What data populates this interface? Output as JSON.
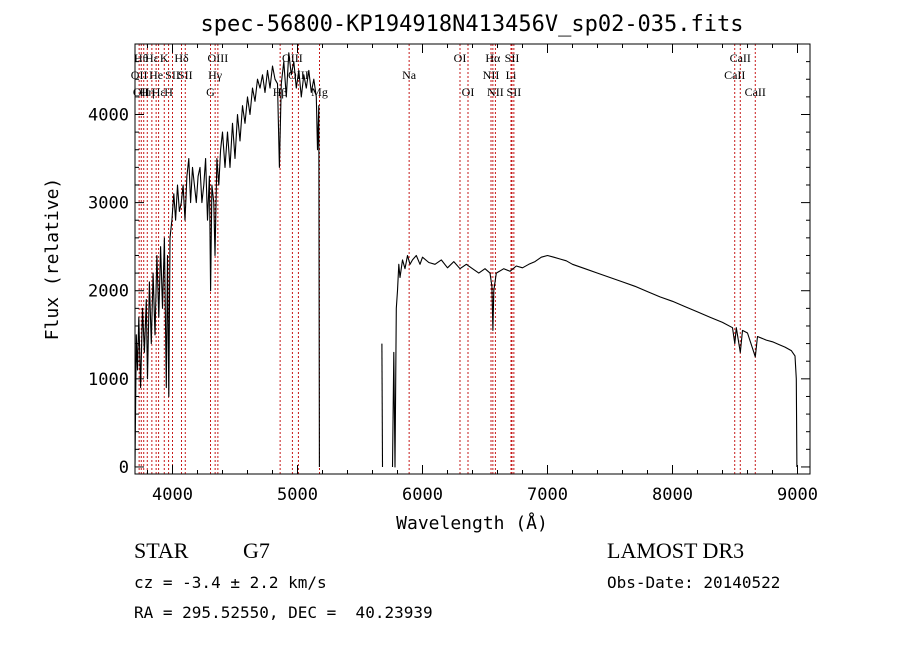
{
  "chart_data": {
    "type": "line",
    "title": "spec-56800-KP194918N413456V_sp02-035.fits",
    "xlabel": "Wavelength (Å)",
    "ylabel": "Flux (relative)",
    "xlim": [
      3700,
      9100
    ],
    "ylim": [
      -80,
      4800
    ],
    "x_ticks": [
      4000,
      5000,
      6000,
      7000,
      8000,
      9000
    ],
    "y_ticks": [
      0,
      1000,
      2000,
      3000,
      4000
    ],
    "grid": false,
    "series": [
      {
        "segments": [
          [
            [
              3700,
              0
            ],
            [
              3710,
              1500
            ],
            [
              3720,
              1100
            ],
            [
              3730,
              1700
            ],
            [
              3745,
              900
            ],
            [
              3760,
              1800
            ],
            [
              3775,
              1300
            ],
            [
              3790,
              1900
            ],
            [
              3800,
              1000
            ],
            [
              3815,
              2100
            ],
            [
              3830,
              1400
            ],
            [
              3845,
              2200
            ],
            [
              3860,
              1500
            ],
            [
              3875,
              2400
            ],
            [
              3890,
              1700
            ],
            [
              3905,
              2500
            ],
            [
              3920,
              1800
            ],
            [
              3935,
              2600
            ],
            [
              3950,
              900
            ],
            [
              3960,
              2400
            ],
            [
              3970,
              800
            ],
            [
              3980,
              2600
            ],
            [
              3995,
              2800
            ],
            [
              4010,
              3100
            ],
            [
              4025,
              2800
            ],
            [
              4040,
              3200
            ],
            [
              4055,
              2900
            ],
            [
              4070,
              3000
            ],
            [
              4085,
              3200
            ],
            [
              4100,
              2800
            ],
            [
              4115,
              3300
            ],
            [
              4130,
              3500
            ],
            [
              4145,
              3000
            ],
            [
              4160,
              3400
            ],
            [
              4175,
              3200
            ],
            [
              4190,
              3000
            ],
            [
              4205,
              3300
            ],
            [
              4220,
              3400
            ],
            [
              4235,
              3000
            ],
            [
              4250,
              3200
            ],
            [
              4265,
              3500
            ],
            [
              4280,
              2800
            ],
            [
              4295,
              3300
            ],
            [
              4305,
              2000
            ],
            [
              4315,
              3200
            ],
            [
              4330,
              3000
            ],
            [
              4340,
              2400
            ],
            [
              4355,
              3500
            ],
            [
              4370,
              3200
            ],
            [
              4385,
              3600
            ],
            [
              4400,
              3800
            ],
            [
              4420,
              3400
            ],
            [
              4440,
              3800
            ],
            [
              4460,
              3400
            ],
            [
              4480,
              3900
            ],
            [
              4500,
              3500
            ],
            [
              4520,
              4000
            ],
            [
              4540,
              3700
            ],
            [
              4560,
              4100
            ],
            [
              4580,
              3900
            ],
            [
              4600,
              4200
            ],
            [
              4620,
              4000
            ],
            [
              4640,
              4300
            ],
            [
              4660,
              4150
            ],
            [
              4680,
              4400
            ],
            [
              4700,
              4300
            ],
            [
              4720,
              4450
            ],
            [
              4740,
              4250
            ],
            [
              4760,
              4500
            ],
            [
              4780,
              4300
            ],
            [
              4800,
              4550
            ],
            [
              4820,
              4400
            ],
            [
              4840,
              4350
            ],
            [
              4855,
              3400
            ],
            [
              4870,
              4350
            ],
            [
              4890,
              4600
            ],
            [
              4910,
              4200
            ],
            [
              4930,
              4700
            ],
            [
              4950,
              4450
            ],
            [
              4970,
              4600
            ],
            [
              4990,
              4300
            ],
            [
              5010,
              4500
            ],
            [
              5030,
              4200
            ],
            [
              5050,
              4450
            ],
            [
              5070,
              4300
            ],
            [
              5090,
              4500
            ],
            [
              5110,
              4250
            ],
            [
              5130,
              4400
            ],
            [
              5150,
              4200
            ],
            [
              5160,
              3600
            ],
            [
              5170,
              4100
            ],
            [
              5175,
              0
            ]
          ],
          [
            [
              5675,
              1400
            ],
            [
              5680,
              0
            ]
          ],
          [
            [
              5760,
              0
            ],
            [
              5770,
              1300
            ],
            [
              5780,
              0
            ],
            [
              5790,
              1800
            ],
            [
              5800,
              2000
            ],
            [
              5810,
              2300
            ],
            [
              5820,
              2150
            ],
            [
              5840,
              2350
            ],
            [
              5860,
              2250
            ],
            [
              5880,
              2400
            ],
            [
              5900,
              2300
            ],
            [
              5920,
              2350
            ],
            [
              5950,
              2400
            ],
            [
              5980,
              2300
            ],
            [
              6000,
              2380
            ],
            [
              6050,
              2320
            ],
            [
              6100,
              2300
            ],
            [
              6150,
              2350
            ],
            [
              6200,
              2260
            ],
            [
              6250,
              2330
            ],
            [
              6300,
              2250
            ],
            [
              6350,
              2300
            ],
            [
              6400,
              2250
            ],
            [
              6450,
              2200
            ],
            [
              6500,
              2250
            ],
            [
              6540,
              2200
            ],
            [
              6555,
              2050
            ],
            [
              6563,
              1550
            ],
            [
              6570,
              2000
            ],
            [
              6590,
              2200
            ],
            [
              6650,
              2250
            ],
            [
              6700,
              2220
            ],
            [
              6750,
              2280
            ],
            [
              6800,
              2260
            ],
            [
              6850,
              2300
            ],
            [
              6900,
              2330
            ],
            [
              6950,
              2380
            ],
            [
              7000,
              2400
            ],
            [
              7050,
              2380
            ],
            [
              7100,
              2360
            ],
            [
              7150,
              2340
            ],
            [
              7200,
              2300
            ],
            [
              7300,
              2250
            ],
            [
              7400,
              2200
            ],
            [
              7500,
              2150
            ],
            [
              7600,
              2100
            ],
            [
              7700,
              2050
            ],
            [
              7800,
              1990
            ],
            [
              7900,
              1930
            ],
            [
              8000,
              1880
            ],
            [
              8100,
              1820
            ],
            [
              8200,
              1760
            ],
            [
              8300,
              1700
            ],
            [
              8400,
              1640
            ],
            [
              8480,
              1580
            ],
            [
              8498,
              1400
            ],
            [
              8510,
              1580
            ],
            [
              8542,
              1300
            ],
            [
              8560,
              1550
            ],
            [
              8600,
              1520
            ],
            [
              8662,
              1250
            ],
            [
              8680,
              1480
            ],
            [
              8750,
              1440
            ],
            [
              8800,
              1420
            ],
            [
              8850,
              1390
            ],
            [
              8900,
              1360
            ],
            [
              8950,
              1320
            ],
            [
              8980,
              1260
            ],
            [
              8990,
              1000
            ],
            [
              8995,
              0
            ]
          ]
        ]
      }
    ],
    "lines": [
      {
        "wl": 3733,
        "labels": [
          {
            "text": "OII",
            "row": 1
          }
        ]
      },
      {
        "wl": 3750,
        "labels": [
          {
            "text": "Hθ",
            "row": 0
          },
          {
            "text": "OII",
            "row": 2
          }
        ]
      },
      {
        "wl": 3770,
        "labels": []
      },
      {
        "wl": 3798,
        "labels": [
          {
            "text": "Hη",
            "row": 2
          }
        ]
      },
      {
        "wl": 3835,
        "labels": [
          {
            "text": "Hε",
            "row": 0
          }
        ]
      },
      {
        "wl": 3869,
        "labels": [
          {
            "text": "He",
            "row": 1
          }
        ]
      },
      {
        "wl": 3889,
        "labels": [
          {
            "text": "Hε",
            "row": 2
          }
        ]
      },
      {
        "wl": 3934,
        "labels": [
          {
            "text": "K",
            "row": 0
          }
        ]
      },
      {
        "wl": 3969,
        "labels": [
          {
            "text": "H",
            "row": 2
          }
        ]
      },
      {
        "wl": 4000,
        "labels": [
          {
            "text": "SII",
            "row": 1
          }
        ]
      },
      {
        "wl": 4072,
        "labels": [
          {
            "text": "Hδ",
            "row": 0
          }
        ]
      },
      {
        "wl": 4102,
        "labels": [
          {
            "text": "SII",
            "row": 1
          }
        ]
      },
      {
        "wl": 4304,
        "labels": [
          {
            "text": "G",
            "row": 2
          }
        ]
      },
      {
        "wl": 4341,
        "labels": [
          {
            "text": "Hγ",
            "row": 1
          }
        ]
      },
      {
        "wl": 4363,
        "labels": [
          {
            "text": "OIII",
            "row": 0
          }
        ]
      },
      {
        "wl": 4861,
        "labels": [
          {
            "text": "Hβ",
            "row": 2
          }
        ]
      },
      {
        "wl": 4959,
        "labels": [
          {
            "text": "OIII",
            "row": 0
          }
        ]
      },
      {
        "wl": 5007,
        "labels": [
          {
            "text": "OIII",
            "row": 1
          }
        ]
      },
      {
        "wl": 5176,
        "labels": [
          {
            "text": "Mg",
            "row": 2
          }
        ]
      },
      {
        "wl": 5893,
        "labels": [
          {
            "text": "Na",
            "row": 1
          }
        ]
      },
      {
        "wl": 6300,
        "labels": [
          {
            "text": "OI",
            "row": 0
          }
        ]
      },
      {
        "wl": 6364,
        "labels": [
          {
            "text": "OI",
            "row": 2
          }
        ]
      },
      {
        "wl": 6548,
        "labels": [
          {
            "text": "NII",
            "row": 1
          }
        ]
      },
      {
        "wl": 6563,
        "labels": [
          {
            "text": "Hα",
            "row": 0
          }
        ]
      },
      {
        "wl": 6583,
        "labels": [
          {
            "text": "NII",
            "row": 2
          }
        ]
      },
      {
        "wl": 6708,
        "labels": [
          {
            "text": "Li",
            "row": 1
          }
        ]
      },
      {
        "wl": 6716,
        "labels": [
          {
            "text": "SII",
            "row": 0
          }
        ]
      },
      {
        "wl": 6731,
        "labels": [
          {
            "text": "SII",
            "row": 2
          }
        ]
      },
      {
        "wl": 8498,
        "labels": [
          {
            "text": "CaII",
            "row": 1
          }
        ]
      },
      {
        "wl": 8542,
        "labels": [
          {
            "text": "CaII",
            "row": 0
          }
        ]
      },
      {
        "wl": 8662,
        "labels": [
          {
            "text": "CaII",
            "row": 2
          }
        ]
      }
    ]
  },
  "info": {
    "object_class": "STAR",
    "subclass": "G7",
    "survey": "LAMOST DR3",
    "cz": "cz = -3.4 ± 2.2 km/s",
    "obs_date": "Obs-Date: 20140522",
    "coords": "RA = 295.52550, DEC =  40.23939"
  },
  "colors": {
    "line_marker": "#c00000",
    "spectrum": "#000000"
  }
}
